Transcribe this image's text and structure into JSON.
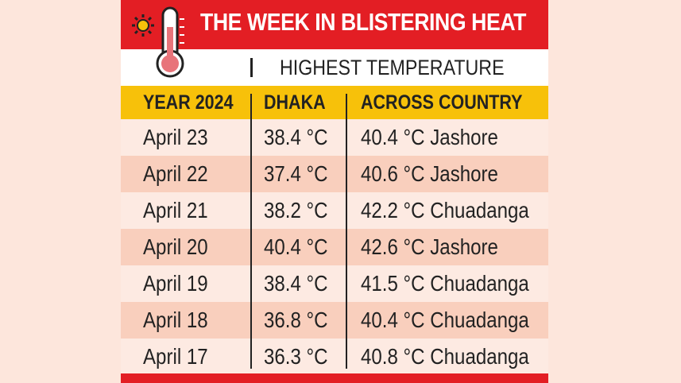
{
  "header": {
    "title": "THE WEEK IN BLISTERING HEAT",
    "subtitle": "HIGHEST TEMPERATURE"
  },
  "table": {
    "columns": [
      "YEAR 2024",
      "DHAKA",
      "ACROSS COUNTRY"
    ],
    "rows": [
      [
        "April 23",
        "38.4 °C",
        "40.4 °C Jashore"
      ],
      [
        "April 22",
        "37.4 °C",
        "40.6 °C Jashore"
      ],
      [
        "April 21",
        "38.2 °C",
        "42.2 °C Chuadanga"
      ],
      [
        "April 20",
        "40.4 °C",
        "42.6 °C Jashore"
      ],
      [
        "April 19",
        "38.4 °C",
        "41.5 °C Chuadanga"
      ],
      [
        "April 18",
        "36.8 °C",
        "40.4 °C Chuadanga"
      ],
      [
        "April 17",
        "36.3 °C",
        "40.8 °C Chuadanga"
      ]
    ]
  }
}
